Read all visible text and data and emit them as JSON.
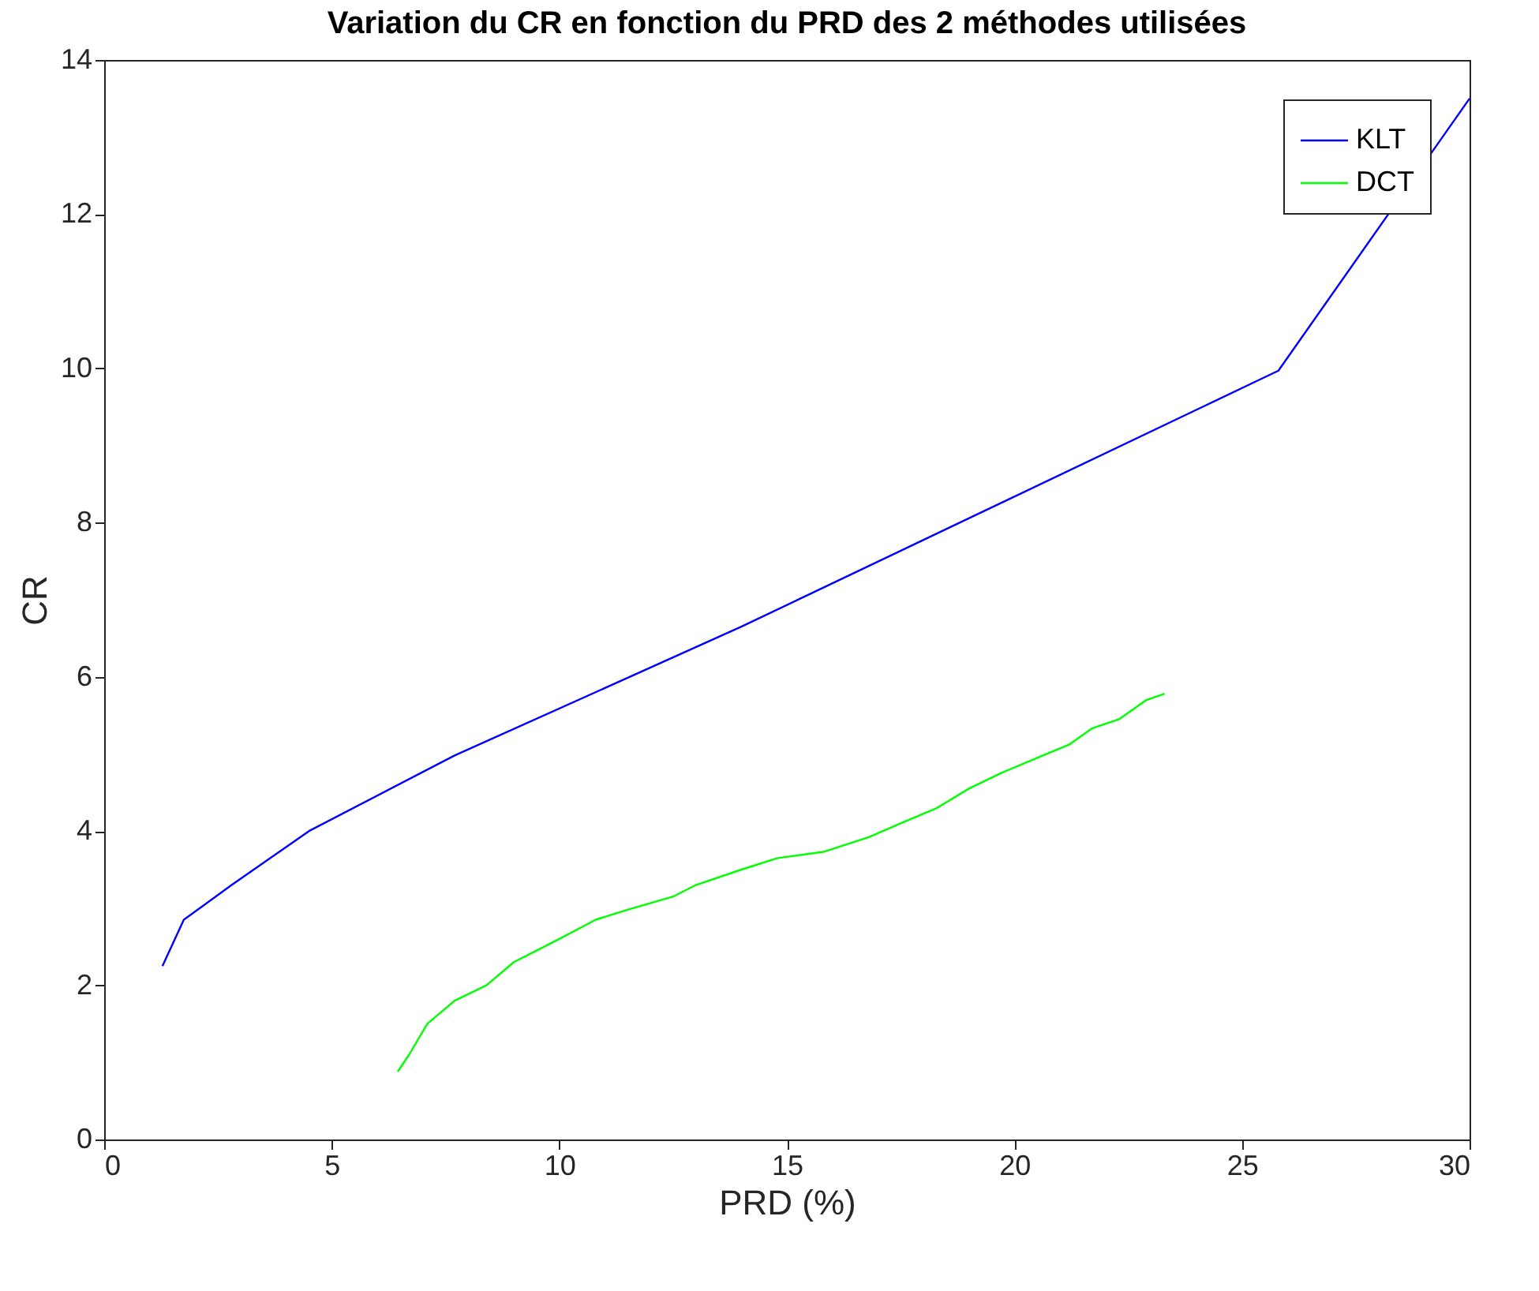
{
  "chart_data": {
    "type": "line",
    "title": "Variation du CR en fonction du PRD des 2 méthodes utilisées",
    "xlabel": "PRD (%)",
    "ylabel": "CR",
    "xlim": [
      0,
      30
    ],
    "xticks": [
      0,
      5,
      10,
      15,
      20,
      25,
      30
    ],
    "ylim": [
      0,
      14
    ],
    "yticks": [
      0,
      2,
      4,
      6,
      8,
      10,
      12,
      14
    ],
    "grid": false,
    "legend": "top right",
    "marker": "none",
    "line_style": "solid",
    "series": [
      {
        "name": "KLT",
        "color": "#0000ff",
        "x": [
          1.28,
          1.75,
          2.8,
          4.5,
          7.7,
          14.0,
          25.8,
          30.0
        ],
        "values": [
          2.25,
          2.85,
          3.3,
          4.0,
          4.98,
          6.65,
          9.97,
          13.5
        ]
      },
      {
        "name": "DCT",
        "color": "#00ff00",
        "x": [
          6.45,
          6.7,
          7.1,
          7.7,
          8.4,
          9.0,
          9.5,
          10.0,
          10.8,
          11.5,
          12.5,
          13.0,
          14.0,
          14.8,
          15.8,
          16.8,
          17.5,
          18.3,
          19.0,
          19.7,
          20.5,
          21.2,
          21.7,
          22.3,
          22.9,
          23.3
        ],
        "values": [
          0.88,
          1.1,
          1.5,
          1.8,
          2.0,
          2.3,
          2.45,
          2.6,
          2.85,
          2.98,
          3.15,
          3.3,
          3.5,
          3.65,
          3.73,
          3.92,
          4.1,
          4.3,
          4.55,
          4.75,
          4.95,
          5.12,
          5.33,
          5.45,
          5.7,
          5.78
        ]
      }
    ]
  }
}
